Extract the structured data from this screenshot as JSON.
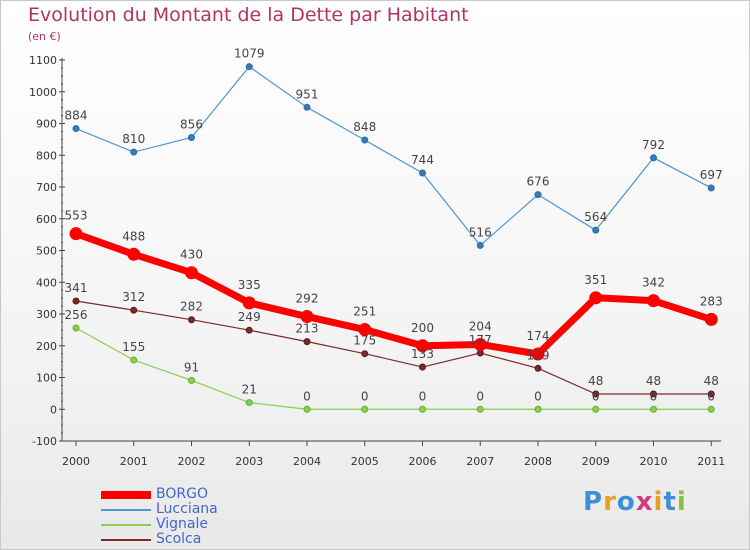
{
  "header": {
    "title": "Evolution du Montant de la Dette par Habitant",
    "subtitle": "(en €)"
  },
  "logo": {
    "text": "Proxiti"
  },
  "chart_data": {
    "type": "line",
    "title": "Evolution du Montant de la Dette par Habitant",
    "subtitle": "(en €)",
    "xlabel": "",
    "ylabel": "",
    "categories": [
      "2000",
      "2001",
      "2002",
      "2003",
      "2004",
      "2005",
      "2006",
      "2007",
      "2008",
      "2009",
      "2010",
      "2011"
    ],
    "ylim": [
      -100,
      1100
    ],
    "yticks": [
      -100,
      0,
      100,
      200,
      300,
      400,
      500,
      600,
      700,
      800,
      900,
      1000,
      1100
    ],
    "grid": false,
    "legend_position": "bottom-left",
    "series": [
      {
        "name": "BORGO",
        "color": "#ff0000",
        "values": [
          553,
          488,
          430,
          335,
          292,
          251,
          200,
          204,
          174,
          351,
          342,
          283
        ]
      },
      {
        "name": "Lucciana",
        "color": "#4f95d0",
        "values": [
          884,
          810,
          856,
          1079,
          951,
          848,
          744,
          516,
          676,
          564,
          792,
          697
        ]
      },
      {
        "name": "Vignale",
        "color": "#88d050",
        "values": [
          256,
          155,
          91,
          21,
          0,
          0,
          0,
          0,
          0,
          0,
          0,
          0
        ]
      },
      {
        "name": "Scolca",
        "color": "#7a2a2a",
        "values": [
          341,
          312,
          282,
          249,
          213,
          175,
          133,
          177,
          129,
          48,
          48,
          48
        ]
      }
    ]
  }
}
